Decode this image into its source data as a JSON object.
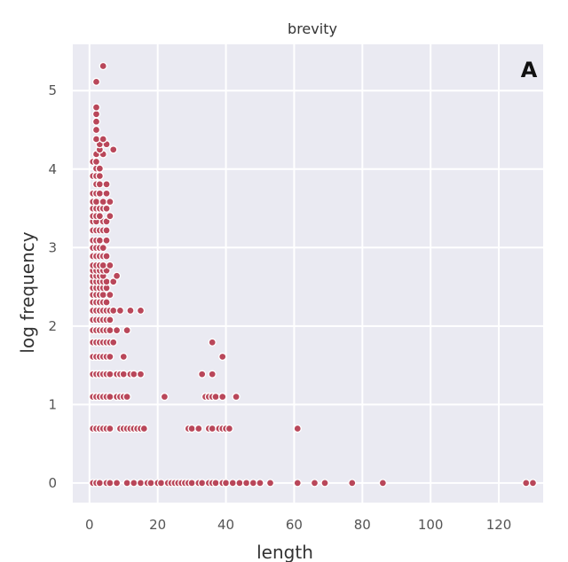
{
  "chart_data": {
    "type": "scatter",
    "title": "brevity",
    "panel_label": "A",
    "xlabel": "length",
    "ylabel": "log frequency",
    "xlim": [
      -4.9,
      133
    ],
    "ylim": [
      -0.25,
      5.59
    ],
    "xticks": [
      0,
      20,
      40,
      60,
      80,
      100,
      120
    ],
    "yticks": [
      0,
      1,
      2,
      3,
      4,
      5
    ],
    "grid": true,
    "colors": {
      "point": "#b9475a",
      "edge": "#ffffff",
      "background": "#eaeaf2",
      "grid": "#ffffff"
    },
    "rows": [
      {
        "y": 0,
        "x": [
          1,
          2,
          3,
          5,
          6,
          8,
          11,
          13,
          15,
          17,
          18,
          20,
          21,
          23,
          24,
          25,
          26,
          27,
          28,
          29,
          30,
          32,
          33,
          35,
          36,
          37,
          39,
          40,
          42,
          44,
          46,
          48,
          50,
          53,
          61,
          66,
          69,
          77,
          86,
          128,
          130
        ]
      },
      {
        "y": 0.693,
        "x": [
          1,
          2,
          3,
          4,
          5,
          6,
          9,
          10,
          11,
          12,
          13,
          14,
          15,
          16,
          29,
          30,
          32,
          35,
          36,
          38,
          39,
          40,
          41,
          61
        ]
      },
      {
        "y": 1.099,
        "x": [
          1,
          2,
          3,
          4,
          5,
          6,
          8,
          9,
          10,
          11,
          22,
          34,
          35,
          36,
          37,
          39,
          43
        ]
      },
      {
        "y": 1.386,
        "x": [
          1,
          2,
          3,
          4,
          5,
          6,
          8,
          9,
          10,
          12,
          13,
          15,
          33,
          36
        ]
      },
      {
        "y": 1.609,
        "x": [
          1,
          2,
          3,
          4,
          5,
          6,
          10,
          39
        ]
      },
      {
        "y": 1.792,
        "x": [
          1,
          2,
          3,
          4,
          5,
          6,
          7,
          36
        ]
      },
      {
        "y": 1.946,
        "x": [
          1,
          2,
          3,
          4,
          5,
          6,
          8,
          11
        ]
      },
      {
        "y": 2.079,
        "x": [
          1,
          2,
          3,
          4,
          5,
          6
        ]
      },
      {
        "y": 2.197,
        "x": [
          1,
          2,
          3,
          4,
          5,
          6,
          7,
          9,
          12,
          15
        ]
      },
      {
        "y": 2.303,
        "x": [
          1,
          2,
          3,
          4,
          5
        ]
      },
      {
        "y": 2.398,
        "x": [
          1,
          2,
          3,
          4,
          6
        ]
      },
      {
        "y": 2.485,
        "x": [
          1,
          2,
          3,
          4,
          5
        ]
      },
      {
        "y": 2.565,
        "x": [
          1,
          2,
          3,
          4,
          5,
          7
        ]
      },
      {
        "y": 2.639,
        "x": [
          1,
          2,
          3,
          4,
          8
        ]
      },
      {
        "y": 2.708,
        "x": [
          1,
          2,
          3,
          4,
          5
        ]
      },
      {
        "y": 2.773,
        "x": [
          1,
          2,
          3,
          4,
          6
        ]
      },
      {
        "y": 2.89,
        "x": [
          1,
          2,
          3,
          4,
          5
        ]
      },
      {
        "y": 2.996,
        "x": [
          1,
          2,
          3,
          4
        ]
      },
      {
        "y": 3.091,
        "x": [
          1,
          2,
          3,
          5
        ]
      },
      {
        "y": 3.219,
        "x": [
          1,
          2,
          3,
          4,
          5
        ]
      },
      {
        "y": 3.332,
        "x": [
          1,
          2,
          4,
          5
        ]
      },
      {
        "y": 3.401,
        "x": [
          1,
          2,
          3,
          6
        ]
      },
      {
        "y": 3.497,
        "x": [
          1,
          2,
          3,
          4,
          5
        ]
      },
      {
        "y": 3.584,
        "x": [
          1,
          2,
          4,
          6
        ]
      },
      {
        "y": 3.689,
        "x": [
          1,
          2,
          3,
          5
        ]
      },
      {
        "y": 3.807,
        "x": [
          2,
          3,
          5
        ]
      },
      {
        "y": 3.912,
        "x": [
          1,
          2,
          3
        ]
      },
      {
        "y": 4.007,
        "x": [
          2,
          3
        ]
      },
      {
        "y": 4.094,
        "x": [
          1,
          2
        ]
      },
      {
        "y": 4.19,
        "x": [
          2,
          4
        ]
      },
      {
        "y": 4.248,
        "x": [
          3,
          7
        ]
      },
      {
        "y": 4.317,
        "x": [
          3,
          5
        ]
      },
      {
        "y": 4.382,
        "x": [
          2,
          4
        ]
      },
      {
        "y": 4.5,
        "x": [
          2
        ]
      },
      {
        "y": 4.605,
        "x": [
          2
        ]
      },
      {
        "y": 4.7,
        "x": [
          2
        ]
      },
      {
        "y": 4.787,
        "x": [
          2
        ]
      },
      {
        "y": 5.112,
        "x": [
          2
        ]
      },
      {
        "y": 5.313,
        "x": [
          4
        ]
      }
    ]
  }
}
